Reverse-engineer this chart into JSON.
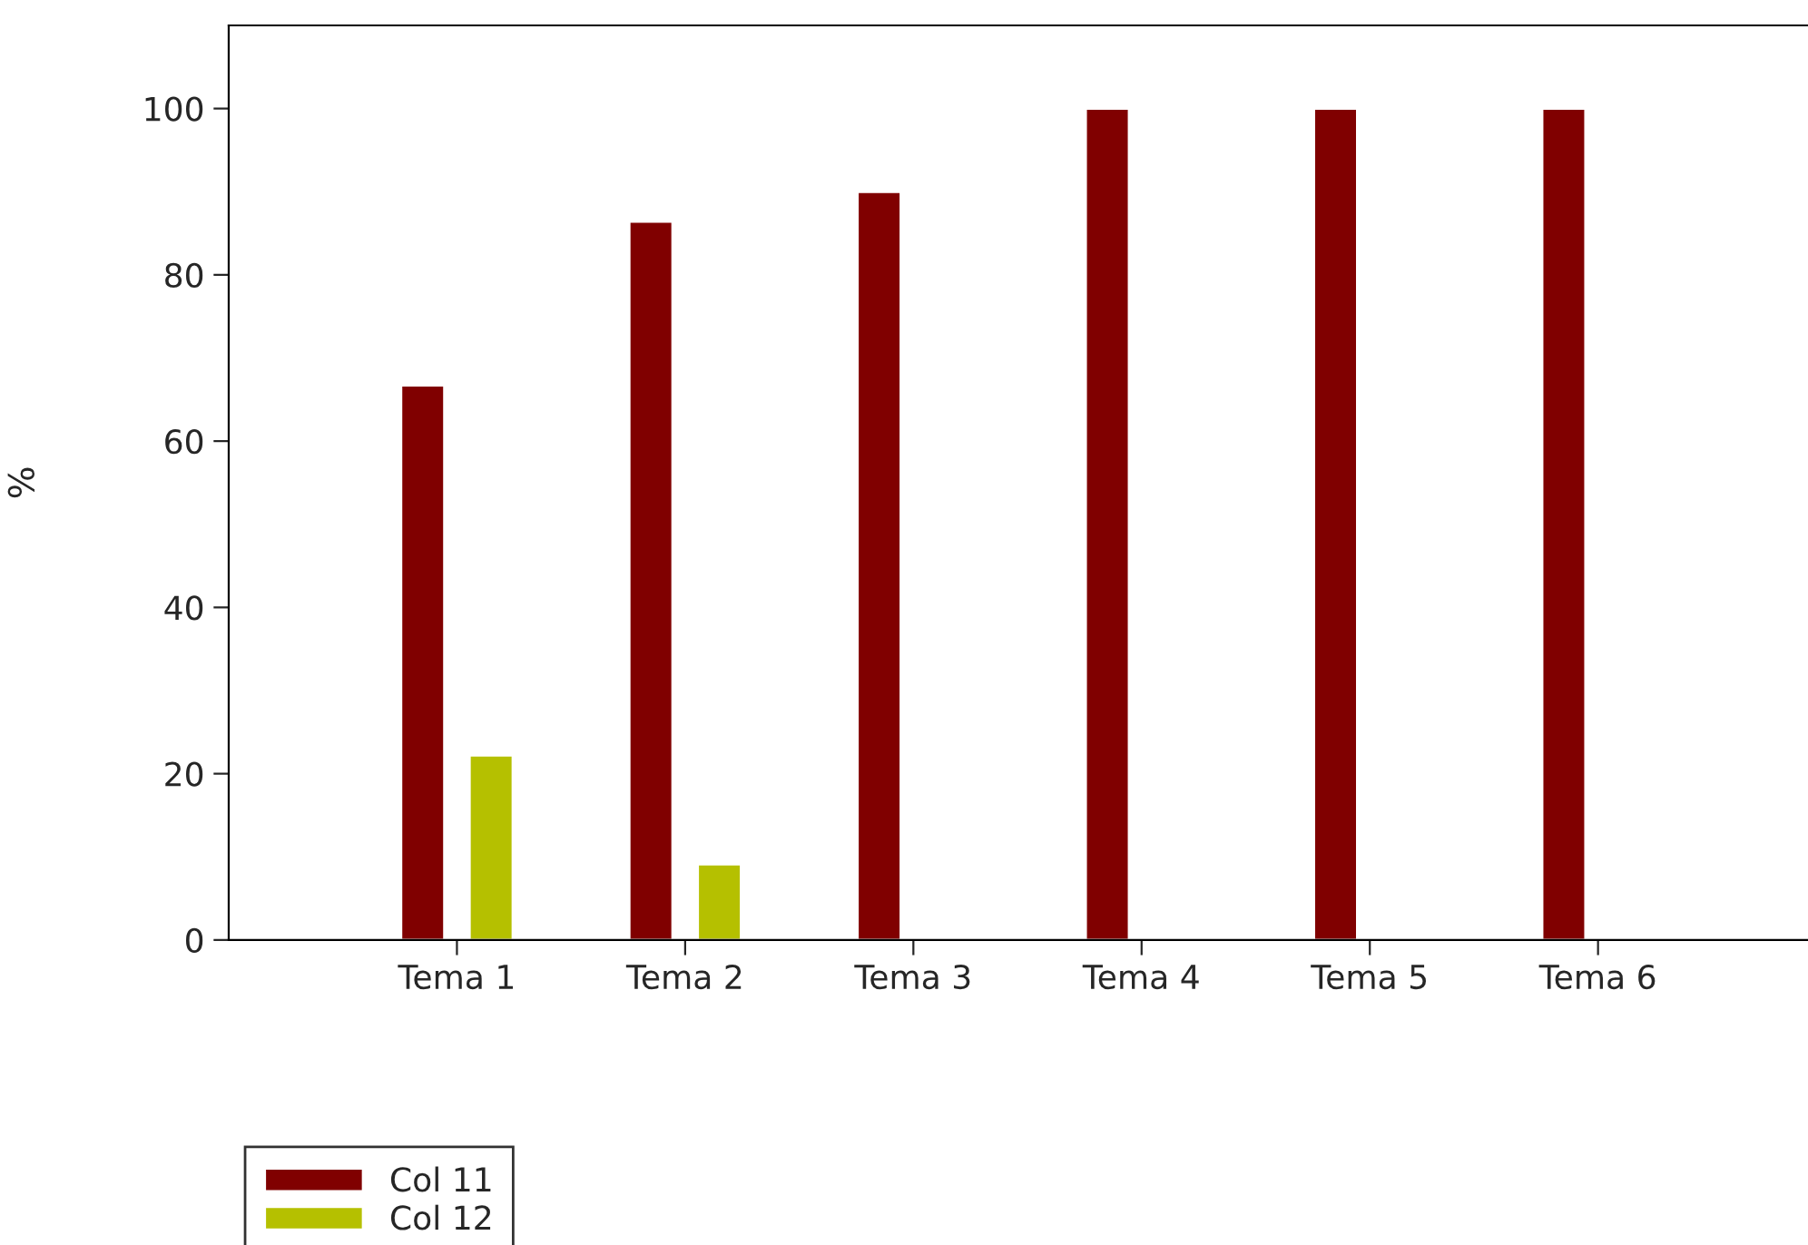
{
  "chart_data": {
    "type": "bar",
    "ylabel": "%",
    "categories": [
      "Tema 1",
      "Tema 2",
      "Tema 3",
      "Tema 4",
      "Tema 5",
      "Tema 6"
    ],
    "series": [
      {
        "name": "Col 11",
        "color": "#800000",
        "values": [
          66.7,
          86.4,
          90,
          100,
          100,
          100
        ]
      },
      {
        "name": "Col 12",
        "color": "#b5c000",
        "values": [
          22.2,
          9.1,
          null,
          null,
          null,
          null
        ]
      }
    ],
    "ylim": [
      0,
      110
    ],
    "yticks": [
      0,
      20,
      40,
      60,
      80,
      100
    ],
    "grid": false,
    "legend": "bottom left"
  }
}
